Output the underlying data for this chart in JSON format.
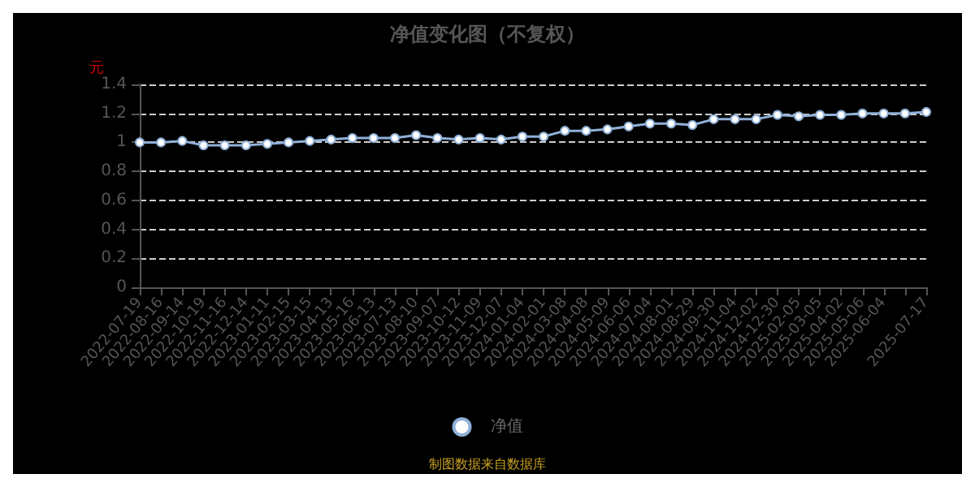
{
  "chart_data": {
    "type": "line",
    "title": "净值变化图（不复权）",
    "ylabel": "元",
    "annotations": [
      "制图数据来自数据库"
    ],
    "categories": [
      "2022-07-19",
      "2022-08-16",
      "2022-09-14",
      "2022-10-19",
      "2022-11-16",
      "2022-12-14",
      "2023-01-11",
      "2023-02-15",
      "2023-03-15",
      "2023-04-13",
      "2023-05-16",
      "2023-06-13",
      "2023-07-13",
      "2023-08-10",
      "2023-09-07",
      "2023-10-12",
      "2023-11-09",
      "2023-12-07",
      "2024-01-04",
      "2024-02-01",
      "2024-03-08",
      "2024-04-08",
      "2024-05-09",
      "2024-06-06",
      "2024-07-04",
      "2024-08-01",
      "2024-08-29",
      "2024-09-30",
      "2024-11-04",
      "2024-12-02",
      "2024-12-30",
      "2025-02-05",
      "2025-03-05",
      "2025-04-02",
      "2025-05-06",
      "2025-06-04",
      null,
      "2025-07-17"
    ],
    "series": [
      {
        "name": "净值",
        "color": "#8fb0d8",
        "values": [
          1.0,
          1.0,
          1.01,
          0.98,
          0.98,
          0.98,
          0.99,
          1.0,
          1.01,
          1.02,
          1.03,
          1.03,
          1.03,
          1.05,
          1.03,
          1.02,
          1.03,
          1.02,
          1.04,
          1.04,
          1.08,
          1.08,
          1.09,
          1.11,
          1.13,
          1.13,
          1.12,
          1.16,
          1.16,
          1.16,
          1.19,
          1.18,
          1.19,
          1.19,
          1.2,
          1.2,
          1.2,
          1.21
        ]
      }
    ],
    "ylim": [
      0,
      1.4
    ],
    "yticks": [
      0,
      0.2,
      0.4,
      0.6,
      0.8,
      1,
      1.2,
      1.4
    ],
    "grid": "y",
    "legend": "bottom",
    "marker": "circle",
    "line_style": "solid"
  }
}
